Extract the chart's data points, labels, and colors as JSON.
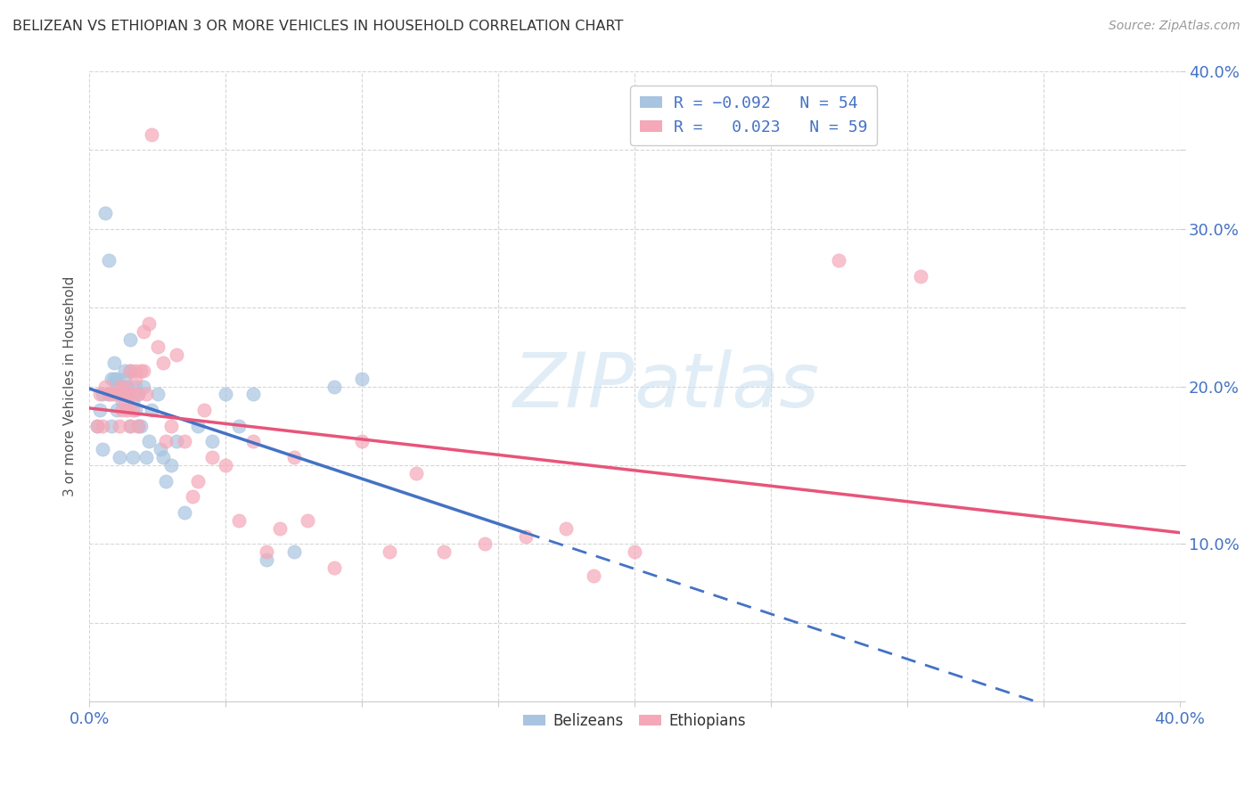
{
  "title": "BELIZEAN VS ETHIOPIAN 3 OR MORE VEHICLES IN HOUSEHOLD CORRELATION CHART",
  "source": "Source: ZipAtlas.com",
  "ylabel": "3 or more Vehicles in Household",
  "xlim": [
    0.0,
    0.4
  ],
  "ylim": [
    0.0,
    0.4
  ],
  "xticks": [
    0.0,
    0.05,
    0.1,
    0.15,
    0.2,
    0.25,
    0.3,
    0.35,
    0.4
  ],
  "yticks": [
    0.0,
    0.05,
    0.1,
    0.15,
    0.2,
    0.25,
    0.3,
    0.35,
    0.4
  ],
  "belizean_color": "#a8c4e0",
  "ethiopian_color": "#f4a8b8",
  "belizean_line_color": "#4472c4",
  "ethiopian_line_color": "#e8547a",
  "watermark_color": "#c8dff0",
  "title_color": "#333333",
  "source_color": "#999999",
  "tick_color": "#4472c4",
  "ylabel_color": "#555555",
  "legend_text_color": "#4472c4",
  "legend_R_belize": "-0.092",
  "legend_N_belize": "54",
  "legend_R_ethiopia": "0.023",
  "legend_N_ethiopia": "59",
  "belizean_x": [
    0.003,
    0.004,
    0.005,
    0.005,
    0.006,
    0.007,
    0.007,
    0.008,
    0.008,
    0.009,
    0.009,
    0.01,
    0.01,
    0.01,
    0.011,
    0.011,
    0.012,
    0.012,
    0.012,
    0.013,
    0.013,
    0.013,
    0.014,
    0.014,
    0.015,
    0.015,
    0.015,
    0.016,
    0.016,
    0.017,
    0.017,
    0.018,
    0.018,
    0.019,
    0.02,
    0.021,
    0.022,
    0.023,
    0.025,
    0.026,
    0.027,
    0.028,
    0.03,
    0.032,
    0.035,
    0.04,
    0.045,
    0.05,
    0.055,
    0.06,
    0.065,
    0.075,
    0.09,
    0.1
  ],
  "belizean_y": [
    0.175,
    0.185,
    0.16,
    0.195,
    0.31,
    0.195,
    0.28,
    0.205,
    0.175,
    0.215,
    0.205,
    0.205,
    0.185,
    0.2,
    0.195,
    0.155,
    0.195,
    0.19,
    0.2,
    0.21,
    0.205,
    0.195,
    0.2,
    0.195,
    0.23,
    0.21,
    0.175,
    0.19,
    0.155,
    0.2,
    0.185,
    0.195,
    0.175,
    0.175,
    0.2,
    0.155,
    0.165,
    0.185,
    0.195,
    0.16,
    0.155,
    0.14,
    0.15,
    0.165,
    0.12,
    0.175,
    0.165,
    0.195,
    0.175,
    0.195,
    0.09,
    0.095,
    0.2,
    0.205
  ],
  "ethiopian_x": [
    0.003,
    0.004,
    0.005,
    0.006,
    0.007,
    0.008,
    0.009,
    0.01,
    0.011,
    0.011,
    0.012,
    0.012,
    0.013,
    0.013,
    0.014,
    0.014,
    0.015,
    0.015,
    0.016,
    0.016,
    0.017,
    0.017,
    0.018,
    0.018,
    0.019,
    0.02,
    0.02,
    0.021,
    0.022,
    0.023,
    0.025,
    0.027,
    0.028,
    0.03,
    0.032,
    0.035,
    0.038,
    0.04,
    0.042,
    0.045,
    0.05,
    0.055,
    0.06,
    0.065,
    0.07,
    0.075,
    0.08,
    0.09,
    0.1,
    0.11,
    0.12,
    0.13,
    0.145,
    0.16,
    0.175,
    0.185,
    0.2,
    0.275,
    0.305
  ],
  "ethiopian_y": [
    0.175,
    0.195,
    0.175,
    0.2,
    0.195,
    0.195,
    0.195,
    0.195,
    0.2,
    0.175,
    0.195,
    0.185,
    0.2,
    0.19,
    0.195,
    0.185,
    0.175,
    0.21,
    0.195,
    0.185,
    0.21,
    0.205,
    0.175,
    0.195,
    0.21,
    0.235,
    0.21,
    0.195,
    0.24,
    0.36,
    0.225,
    0.215,
    0.165,
    0.175,
    0.22,
    0.165,
    0.13,
    0.14,
    0.185,
    0.155,
    0.15,
    0.115,
    0.165,
    0.095,
    0.11,
    0.155,
    0.115,
    0.085,
    0.165,
    0.095,
    0.145,
    0.095,
    0.1,
    0.105,
    0.11,
    0.08,
    0.095,
    0.28,
    0.27
  ]
}
